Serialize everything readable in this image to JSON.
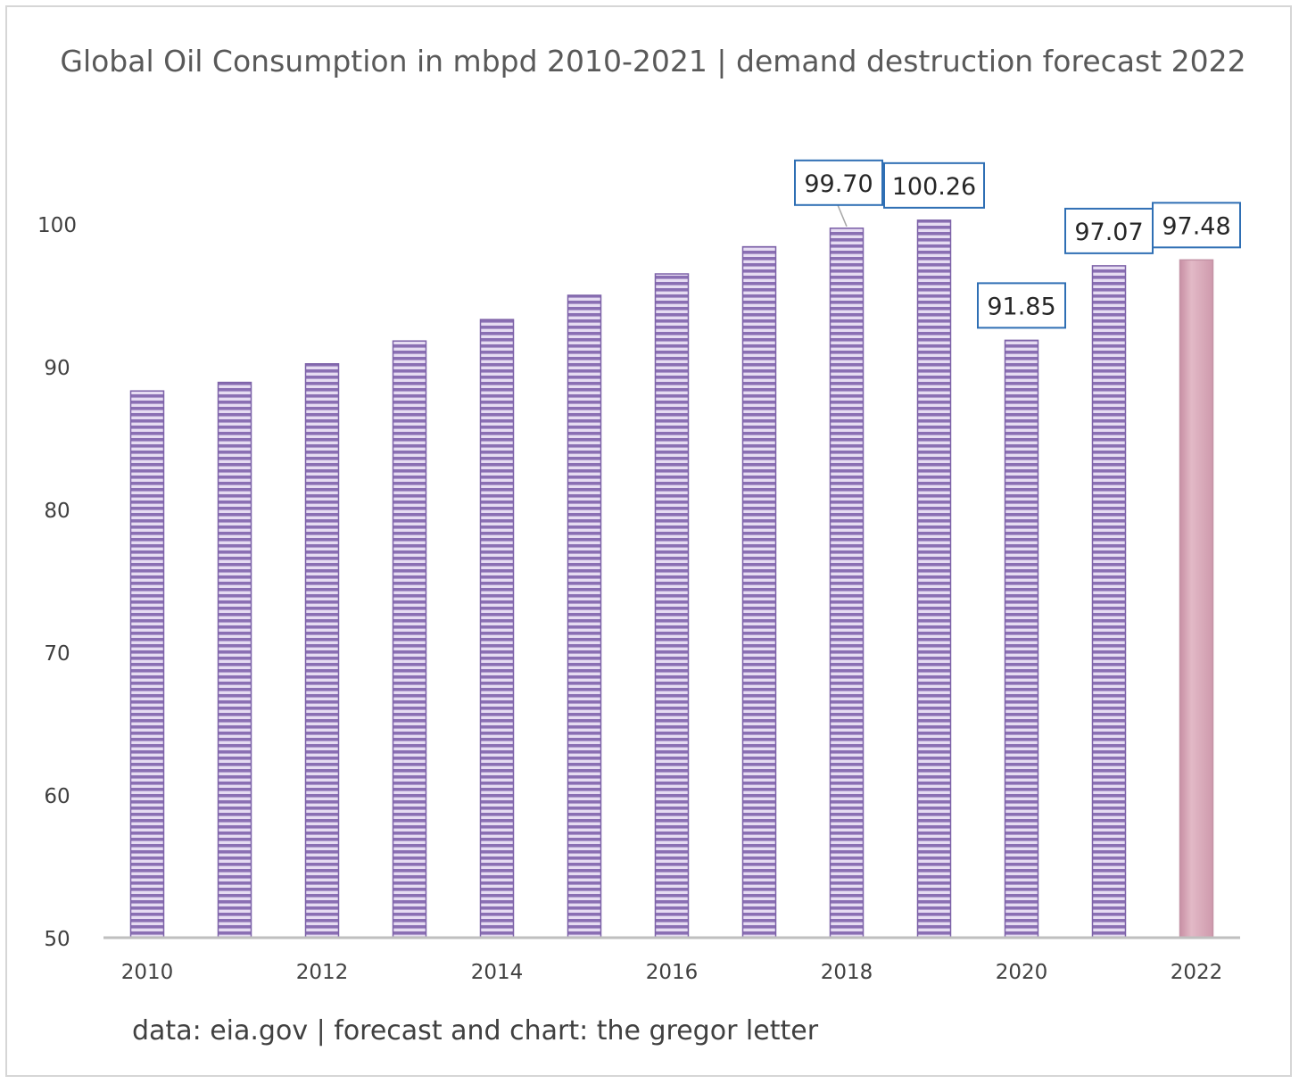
{
  "chart_data": {
    "type": "bar",
    "title": "Global Oil Consumption in mbpd 2010-2021 | demand destruction forecast 2022",
    "footer": "data: eia.gov | forecast and chart: the gregor letter",
    "categories": [
      "2010",
      "2011",
      "2012",
      "2013",
      "2014",
      "2015",
      "2016",
      "2017",
      "2018",
      "2019",
      "2020",
      "2021",
      "2022"
    ],
    "x_tick_labels": [
      "2010",
      "",
      "2012",
      "",
      "2014",
      "",
      "2016",
      "",
      "2018",
      "",
      "2020",
      "",
      "2022"
    ],
    "values": [
      88.3,
      88.9,
      90.2,
      91.8,
      93.3,
      95.0,
      96.5,
      98.4,
      99.7,
      100.26,
      91.85,
      97.07,
      97.48
    ],
    "data_labels": [
      "",
      "",
      "",
      "",
      "",
      "",
      "",
      "",
      "99.70",
      "100.26",
      "91.85",
      "97.07",
      "97.48"
    ],
    "forecast_categories": [
      "2022"
    ],
    "ylim": [
      50,
      105
    ],
    "y_ticks": [
      "50",
      "60",
      "70",
      "80",
      "90",
      "100"
    ],
    "xlabel": "",
    "ylabel": "",
    "grid": false,
    "colors": {
      "bar_stripe_dark": "#8a6fb3",
      "bar_stripe_light": "#e6dcf2",
      "forecast_bar": "#d8a9b8",
      "label_border": "#2f6fb4",
      "axis": "#bfbfbf"
    }
  }
}
